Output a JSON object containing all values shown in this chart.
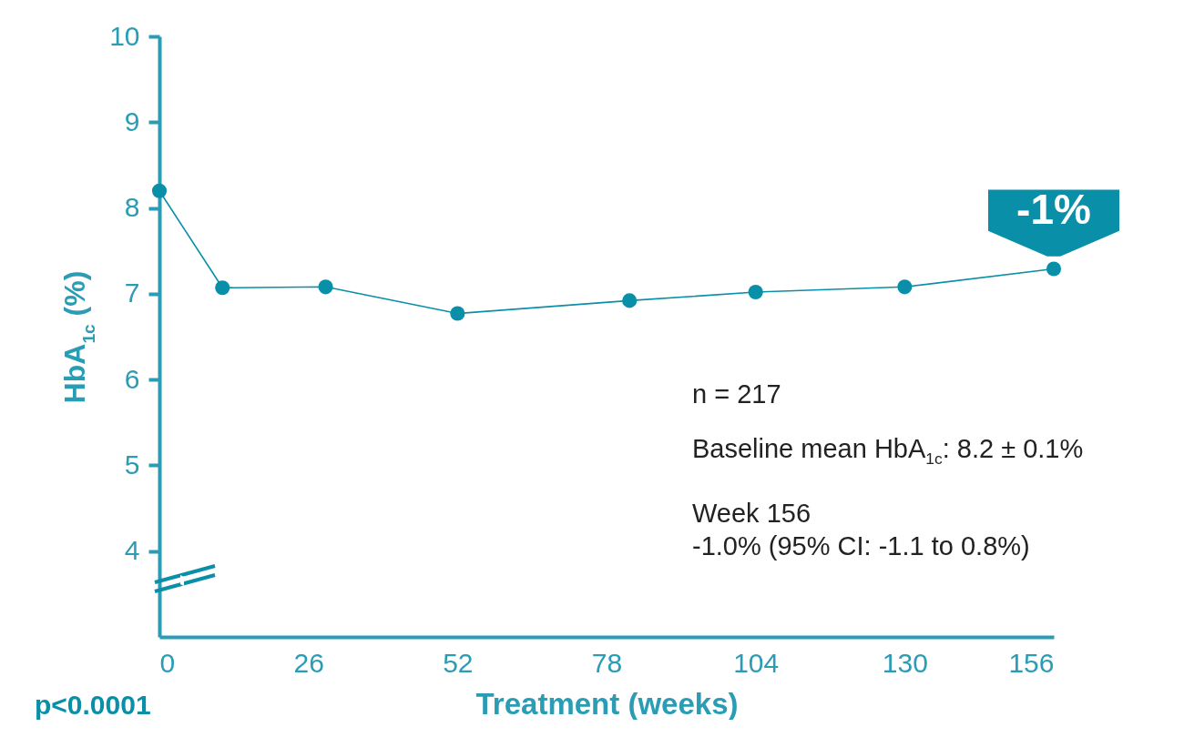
{
  "chart_data": {
    "type": "line",
    "xlabel": "Treatment (weeks)",
    "ylabel": "HbA$_{1c}$ (%)",
    "x": [
      0,
      11,
      29,
      52,
      82,
      104,
      130,
      156
    ],
    "series": [
      {
        "color": "#0a8fa8",
        "values": [
          8.2,
          7.07,
          7.08,
          6.77,
          6.92,
          7.02,
          7.08,
          7.29
        ]
      }
    ],
    "xlim": [
      0,
      156
    ],
    "xticks": [
      0,
      26,
      52,
      78,
      104,
      130,
      156
    ],
    "ylim": [
      3,
      10
    ],
    "yticks": [
      4,
      5,
      6,
      7,
      8,
      9,
      10
    ],
    "grid": false,
    "legend": false,
    "marker": "circle",
    "line_style": "solid",
    "annotations": [
      "n = 217",
      "Baseline mean HbA$_{1c}$: 8.2 ± 0.1%",
      "Week 156\n-1.0% (95% CI: -1.1 to 0.8%)",
      "p<0.0001",
      {
        "text": "-1%",
        "x": 156,
        "y": 7.29
      }
    ]
  }
}
